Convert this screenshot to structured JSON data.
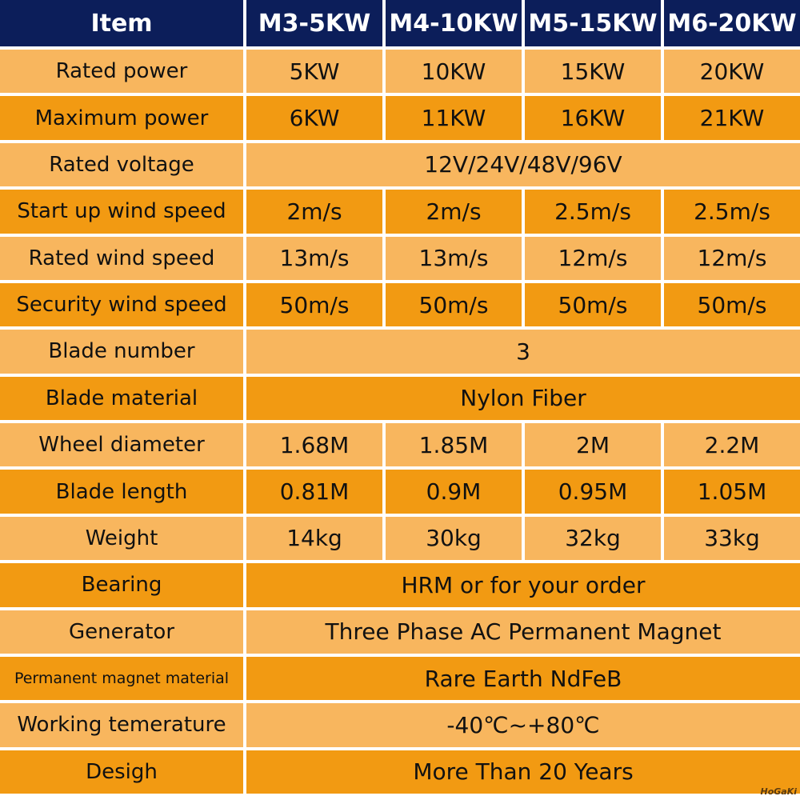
{
  "table": {
    "header": [
      "Item",
      "M3-5KW",
      "M4-10KW",
      "M5-15KW",
      "M6-20KW"
    ],
    "rows": [
      {
        "label": "Rated power",
        "values": [
          "5KW",
          "10KW",
          "15KW",
          "20KW"
        ]
      },
      {
        "label": "Maximum power",
        "values": [
          "6KW",
          "11KW",
          "16KW",
          "21KW"
        ]
      },
      {
        "label": "Rated voltage",
        "values": [
          "12V/24V/48V/96V"
        ]
      },
      {
        "label": "Start up wind speed",
        "values": [
          "2m/s",
          "2m/s",
          "2.5m/s",
          "2.5m/s"
        ]
      },
      {
        "label": "Rated wind speed",
        "values": [
          "13m/s",
          "13m/s",
          "12m/s",
          "12m/s"
        ]
      },
      {
        "label": "Security wind speed",
        "values": [
          "50m/s",
          "50m/s",
          "50m/s",
          "50m/s"
        ]
      },
      {
        "label": "Blade number",
        "values": [
          "3"
        ]
      },
      {
        "label": "Blade material",
        "values": [
          "Nylon Fiber"
        ]
      },
      {
        "label": "Wheel diameter",
        "values": [
          "1.68M",
          "1.85M",
          "2M",
          "2.2M"
        ]
      },
      {
        "label": "Blade length",
        "values": [
          "0.81M",
          "0.9M",
          "0.95M",
          "1.05M"
        ]
      },
      {
        "label": "Weight",
        "values": [
          "14kg",
          "30kg",
          "32kg",
          "33kg"
        ]
      },
      {
        "label": "Bearing",
        "values": [
          "HRM or for your order"
        ]
      },
      {
        "label": "Generator",
        "values": [
          "Three Phase AC Permanent Magnet"
        ]
      },
      {
        "label": "Permanent magnet material",
        "values": [
          "Rare Earth NdFeB"
        ]
      },
      {
        "label": "Working temerature",
        "values": [
          "-40℃~+80℃"
        ]
      },
      {
        "label": "Desigh",
        "values": [
          "More Than 20 Years"
        ]
      }
    ]
  },
  "logo": "HoGaKi"
}
